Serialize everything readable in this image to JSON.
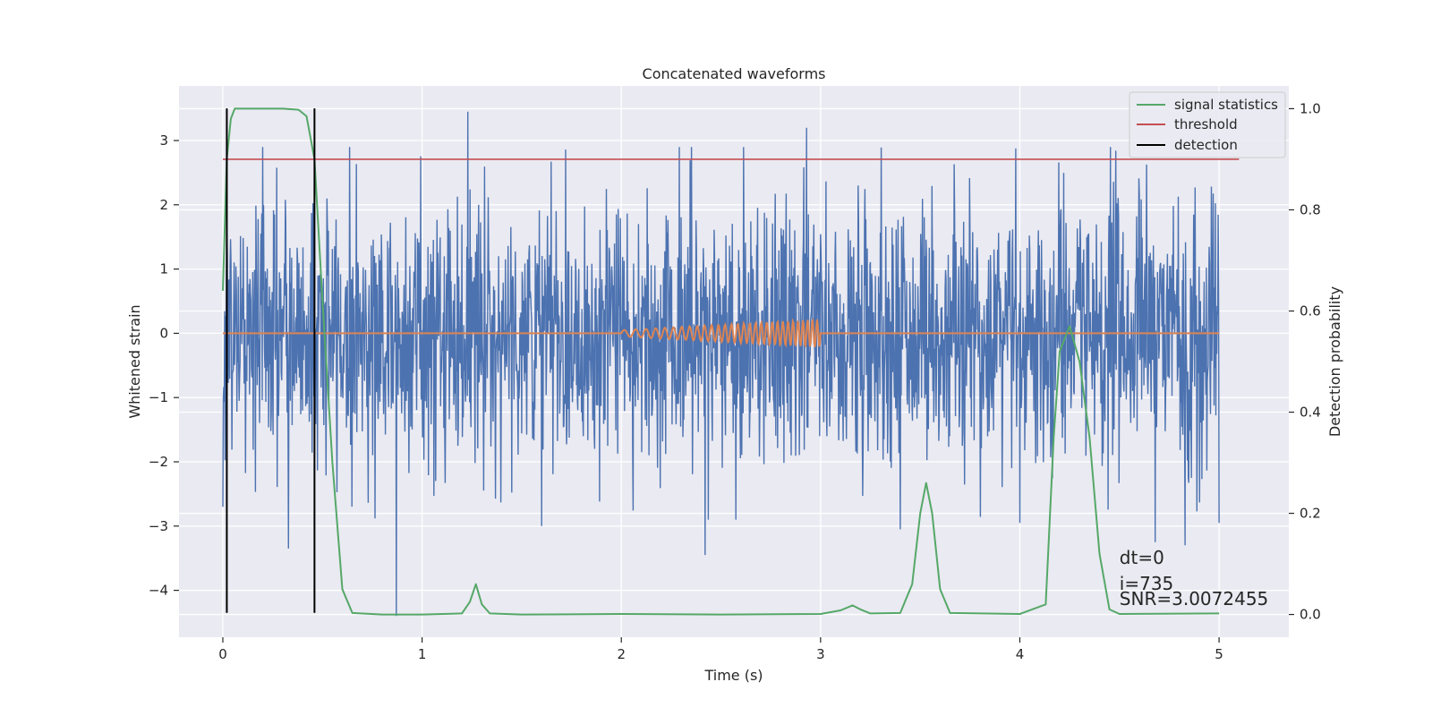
{
  "chart_data": {
    "type": "line",
    "title": "Concatenated waveforms",
    "xlabel": "Time (s)",
    "ylabel": "Whitened strain",
    "y2label": "Detection probability",
    "xlim": [
      -0.22,
      5.35
    ],
    "ylim": [
      -4.73,
      3.85
    ],
    "y2lim": [
      -0.045,
      1.045
    ],
    "xticks": [
      0,
      1,
      2,
      3,
      4,
      5
    ],
    "yticks": [
      -4,
      -3,
      -2,
      -1,
      0,
      1,
      2,
      3
    ],
    "y2ticks": [
      0.0,
      0.2,
      0.4,
      0.6,
      0.8,
      1.0
    ],
    "grid": true,
    "legend_position": "upper-right",
    "noise": {
      "x_start": 0,
      "x_end": 5,
      "typical_amplitude": 1.2,
      "spikes": [
        {
          "x": 0.0,
          "y": -2.7
        },
        {
          "x": 0.02,
          "y": 1.6
        },
        {
          "x": 0.2,
          "y": 2.9
        },
        {
          "x": 0.33,
          "y": -3.35
        },
        {
          "x": 0.46,
          "y": 2.5
        },
        {
          "x": 0.87,
          "y": -4.4
        },
        {
          "x": 1.23,
          "y": 3.45
        },
        {
          "x": 1.6,
          "y": -3.0
        },
        {
          "x": 2.42,
          "y": -3.45
        },
        {
          "x": 2.93,
          "y": 3.2
        },
        {
          "x": 3.4,
          "y": -3.05
        },
        {
          "x": 4.0,
          "y": -2.95
        },
        {
          "x": 4.68,
          "y": -3.25
        },
        {
          "x": 4.83,
          "y": -3.3
        },
        {
          "x": 5.0,
          "y": -2.95
        }
      ]
    },
    "injection": {
      "x_start": 2.0,
      "x_end": 3.0,
      "amplitude_start": 0.05,
      "amplitude_end": 0.22,
      "cycles": 30
    },
    "signal_statistics": {
      "x": [
        0.0,
        0.02,
        0.04,
        0.06,
        0.1,
        0.2,
        0.3,
        0.38,
        0.42,
        0.46,
        0.5,
        0.55,
        0.6,
        0.65,
        0.8,
        1.0,
        1.2,
        1.24,
        1.27,
        1.3,
        1.34,
        1.5,
        2.0,
        2.5,
        3.0,
        3.1,
        3.16,
        3.2,
        3.25,
        3.4,
        3.46,
        3.5,
        3.53,
        3.56,
        3.6,
        3.65,
        4.0,
        4.13,
        4.17,
        4.2,
        4.25,
        4.3,
        4.35,
        4.4,
        4.45,
        4.5,
        5.0
      ],
      "y": [
        0.64,
        0.9,
        0.98,
        1.0,
        1.0,
        1.0,
        1.0,
        0.998,
        0.985,
        0.9,
        0.62,
        0.3,
        0.05,
        0.003,
        0.0,
        0.0,
        0.002,
        0.025,
        0.06,
        0.02,
        0.002,
        0.0,
        0.001,
        0.0,
        0.001,
        0.008,
        0.018,
        0.01,
        0.002,
        0.003,
        0.06,
        0.2,
        0.26,
        0.2,
        0.05,
        0.003,
        0.001,
        0.02,
        0.35,
        0.52,
        0.57,
        0.5,
        0.35,
        0.12,
        0.01,
        0.001,
        0.002
      ]
    },
    "threshold": {
      "x": [
        0.0,
        5.1
      ],
      "y": 0.9
    },
    "detections": [
      0.02,
      0.46
    ],
    "detection_range": [
      -4.35,
      3.5
    ],
    "legend": [
      {
        "label": "signal statistics",
        "color": "#55a868"
      },
      {
        "label": "threshold",
        "color": "#c44e52"
      },
      {
        "label": "detection",
        "color": "#000000"
      }
    ],
    "annotations": [
      "dt=0",
      "i=735",
      "SNR=3.0072455"
    ],
    "annotation_x": 4.5,
    "colors": {
      "background": "#eaeaf2",
      "grid": "#ffffff",
      "noise": "#4c72b0",
      "injection": "#dd8452"
    }
  }
}
